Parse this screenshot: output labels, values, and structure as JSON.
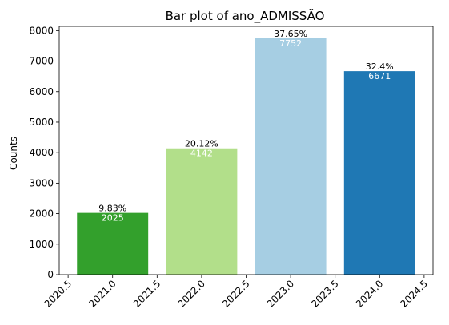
{
  "chart_data": {
    "type": "bar",
    "title": "Bar plot of ano_ADMISSÃO",
    "xlabel": "",
    "ylabel": "Counts",
    "x": [
      2021.0,
      2022.0,
      2023.0,
      2024.0
    ],
    "values": [
      2025,
      4142,
      7752,
      6671
    ],
    "percent_labels": [
      "9.83%",
      "20.12%",
      "37.65%",
      "32.4%"
    ],
    "count_labels": [
      "2025",
      "4142",
      "7752",
      "6671"
    ],
    "colors": [
      "#33a02c",
      "#b2df8a",
      "#a6cee3",
      "#1f78b4"
    ],
    "bar_width": 0.8,
    "xlim": [
      2020.4,
      2024.6
    ],
    "ylim": [
      0,
      8140
    ],
    "xticks": [
      2020.5,
      2021.0,
      2021.5,
      2022.0,
      2022.5,
      2023.0,
      2023.5,
      2024.0,
      2024.5
    ],
    "xtick_labels": [
      "2020.5",
      "2021.0",
      "2021.5",
      "2022.0",
      "2022.5",
      "2023.0",
      "2023.5",
      "2024.0",
      "2024.5"
    ],
    "yticks": [
      0,
      1000,
      2000,
      3000,
      4000,
      5000,
      6000,
      7000,
      8000
    ],
    "ytick_labels": [
      "0",
      "1000",
      "2000",
      "3000",
      "4000",
      "5000",
      "6000",
      "7000",
      "8000"
    ],
    "grid": false,
    "legend": "none"
  }
}
